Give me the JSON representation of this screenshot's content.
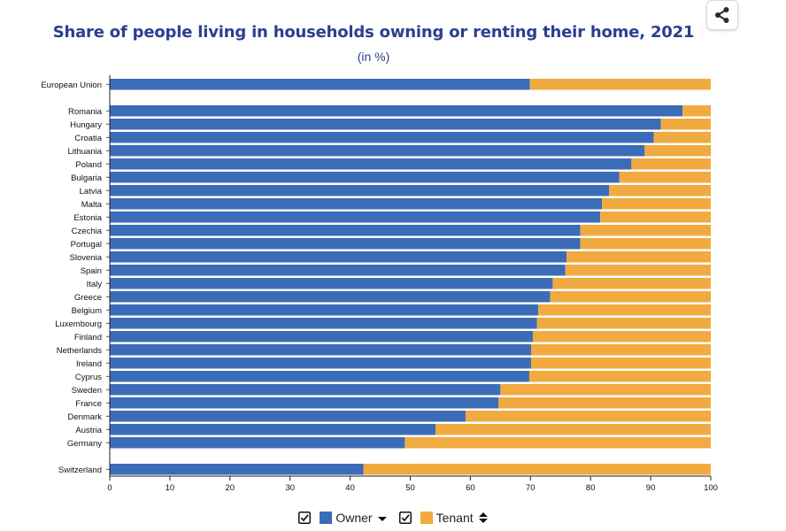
{
  "header": {
    "title": "Share of people living in households owning or renting their home, 2021",
    "subtitle": "(in %)",
    "share_icon": "share-icon"
  },
  "legend": {
    "owner_label": "Owner",
    "tenant_label": "Tenant",
    "owner_sort_icon": "sort-down-icon",
    "tenant_sort_icon": "sort-both-icon"
  },
  "chart_data": {
    "type": "bar",
    "orientation": "horizontal",
    "stacked": true,
    "title": "Share of people living in households owning or renting their home, 2021",
    "subtitle": "(in %)",
    "categories": [
      "European Union",
      "Romania",
      "Hungary",
      "Croatia",
      "Lithuania",
      "Poland",
      "Bulgaria",
      "Latvia",
      "Malta",
      "Estonia",
      "Czechia",
      "Portugal",
      "Slovenia",
      "Spain",
      "Italy",
      "Greece",
      "Belgium",
      "Luxembourg",
      "Finland",
      "Netherlands",
      "Ireland",
      "Cyprus",
      "Sweden",
      "France",
      "Denmark",
      "Austria",
      "Germany",
      "Switzerland"
    ],
    "groups": [
      [
        "European Union"
      ],
      [
        "Romania",
        "Hungary",
        "Croatia",
        "Lithuania",
        "Poland",
        "Bulgaria",
        "Latvia",
        "Malta",
        "Estonia",
        "Czechia",
        "Portugal",
        "Slovenia",
        "Spain",
        "Italy",
        "Greece",
        "Belgium",
        "Luxembourg",
        "Finland",
        "Netherlands",
        "Ireland",
        "Cyprus",
        "Sweden",
        "France",
        "Denmark",
        "Austria",
        "Germany"
      ],
      [
        "Switzerland"
      ]
    ],
    "series": [
      {
        "name": "Owner",
        "color": "#3b6cb8",
        "values": [
          69.9,
          95.3,
          91.7,
          90.5,
          89.0,
          86.8,
          84.8,
          83.1,
          81.9,
          81.6,
          78.3,
          78.3,
          76.0,
          75.8,
          73.7,
          73.3,
          71.3,
          71.1,
          70.4,
          70.1,
          70.1,
          69.8,
          65.0,
          64.7,
          59.2,
          54.2,
          49.1,
          42.2
        ]
      },
      {
        "name": "Tenant",
        "color": "#f1aa3f",
        "values": [
          30.1,
          4.7,
          8.3,
          9.5,
          11.0,
          13.2,
          15.2,
          16.9,
          18.1,
          18.4,
          21.7,
          21.7,
          24.0,
          24.2,
          26.3,
          26.7,
          28.7,
          28.9,
          29.6,
          29.9,
          29.9,
          30.2,
          35.0,
          35.3,
          40.8,
          45.8,
          50.9,
          57.8
        ]
      }
    ],
    "xlim": [
      0,
      100
    ],
    "xticks": [
      "0",
      "10",
      "20",
      "30",
      "40",
      "50",
      "60",
      "70",
      "80",
      "90",
      "100"
    ],
    "grid": false,
    "legend_position": "bottom"
  }
}
